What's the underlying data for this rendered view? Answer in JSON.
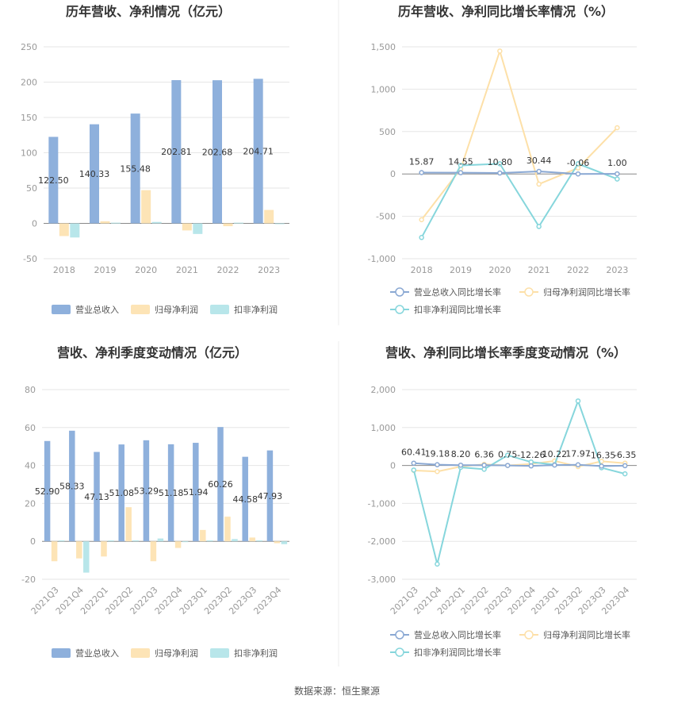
{
  "source_note": "数据来源：恒生聚源",
  "colors": {
    "revenue": "#8eb0dc",
    "net_profit": "#fde4b6",
    "deducted_profit": "#b8e6ea",
    "rev_growth": "#8aa8d3",
    "np_growth": "#fde0a8",
    "dp_growth": "#86d6dc",
    "grid": "#e6e6e6",
    "axis_text": "#999999",
    "title": "#333333"
  },
  "chart_data": [
    {
      "type": "bar",
      "title": "历年营收、净利情况（亿元）",
      "categories": [
        "2018",
        "2019",
        "2020",
        "2021",
        "2022",
        "2023"
      ],
      "ylim": [
        -50,
        250
      ],
      "yticks": [
        -50,
        0,
        50,
        100,
        150,
        200,
        250
      ],
      "ytick_labels": [
        "-50",
        "0",
        "50",
        "100",
        "150",
        "200",
        "250"
      ],
      "series": [
        {
          "name": "营业总收入",
          "values": [
            122.5,
            140.33,
            155.48,
            202.81,
            202.68,
            204.71
          ],
          "labels": [
            "122.50",
            "140.33",
            "155.48",
            "202.81",
            "202.68",
            "204.71"
          ]
        },
        {
          "name": "归母净利润",
          "values": [
            -18,
            3,
            47,
            -10,
            -4,
            19
          ]
        },
        {
          "name": "扣非净利润",
          "values": [
            -20,
            1,
            2,
            -15,
            1,
            0
          ]
        }
      ]
    },
    {
      "type": "line",
      "title": "历年营收、净利同比增长率情况（%）",
      "categories": [
        "2018",
        "2019",
        "2020",
        "2021",
        "2022",
        "2023"
      ],
      "ylim": [
        -1000,
        1500
      ],
      "yticks": [
        -1000,
        -500,
        0,
        500,
        1000,
        1500
      ],
      "ytick_labels": [
        "-1,000",
        "-500",
        "0",
        "500",
        "1,000",
        "1,500"
      ],
      "series": [
        {
          "name": "营业总收入同比增长率",
          "values": [
            15.87,
            14.55,
            10.8,
            30.44,
            -0.06,
            1.0
          ],
          "labels": [
            "15.87",
            "14.55",
            "10.80",
            "30.44",
            "-0.06",
            "1.00"
          ]
        },
        {
          "name": "归母净利润同比增长率",
          "values": [
            -540,
            60,
            1450,
            -120,
            70,
            545
          ]
        },
        {
          "name": "扣非净利润同比增长率",
          "values": [
            -750,
            100,
            120,
            -620,
            120,
            -60
          ]
        }
      ]
    },
    {
      "type": "bar",
      "title": "营收、净利季度变动情况（亿元）",
      "categories": [
        "2021Q3",
        "2021Q4",
        "2022Q1",
        "2022Q2",
        "2022Q3",
        "2022Q4",
        "2023Q1",
        "2023Q2",
        "2023Q3",
        "2023Q4"
      ],
      "ylim": [
        -20,
        80
      ],
      "yticks": [
        -20,
        0,
        20,
        40,
        60,
        80
      ],
      "ytick_labels": [
        "-20",
        "0",
        "20",
        "40",
        "60",
        "80"
      ],
      "series": [
        {
          "name": "营业总收入",
          "values": [
            52.9,
            58.33,
            47.13,
            51.08,
            53.29,
            51.18,
            51.94,
            60.26,
            44.58,
            47.93
          ],
          "labels": [
            "52.90",
            "58.33",
            "47.13",
            "51.08",
            "53.29",
            "51.18",
            "51.94",
            "60.26",
            "44.58",
            "47.93"
          ]
        },
        {
          "name": "归母净利润",
          "values": [
            -10.5,
            -9,
            -8,
            18,
            -10.5,
            -3.5,
            6,
            13,
            2,
            -1
          ]
        },
        {
          "name": "扣非净利润",
          "values": [
            0.5,
            -16.5,
            0.5,
            0.5,
            1.5,
            0,
            0.5,
            1.2,
            0.5,
            -1.5
          ]
        }
      ]
    },
    {
      "type": "line",
      "title": "营收、净利同比增长率季度变动情况（%）",
      "categories": [
        "2021Q3",
        "2021Q4",
        "2022Q1",
        "2022Q2",
        "2022Q3",
        "2022Q4",
        "2023Q1",
        "2023Q2",
        "2023Q3",
        "2023Q4"
      ],
      "ylim": [
        -3000,
        2000
      ],
      "yticks": [
        -3000,
        -2000,
        -1000,
        0,
        1000,
        2000
      ],
      "ytick_labels": [
        "-3,000",
        "-2,000",
        "-1,000",
        "0",
        "1,000",
        "2,000"
      ],
      "series": [
        {
          "name": "营业总收入同比增长率",
          "values": [
            60.41,
            19.18,
            8.2,
            6.36,
            0.75,
            -12.26,
            10.22,
            17.97,
            -16.35,
            -6.35
          ],
          "labels": [
            "60.41",
            "19.18",
            "8.20",
            "6.36",
            "0.75",
            "-12.26",
            "10.22",
            "17.97",
            "-16.35",
            "-6.35"
          ]
        },
        {
          "name": "归母净利润同比增长率",
          "values": [
            -130,
            -160,
            -30,
            30,
            0,
            40,
            120,
            -30,
            110,
            60
          ]
        },
        {
          "name": "扣非净利润同比增长率",
          "values": [
            -120,
            -2600,
            -50,
            -100,
            270,
            90,
            20,
            1700,
            -60,
            -220
          ]
        }
      ]
    }
  ]
}
